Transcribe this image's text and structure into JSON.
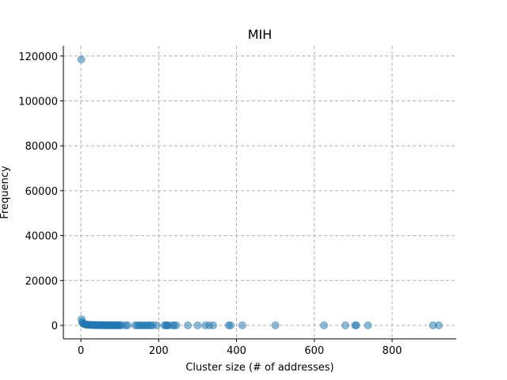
{
  "chart_data": {
    "type": "scatter",
    "title": "MIH",
    "xlabel": "Cluster size (# of addresses)",
    "ylabel": "Frequency",
    "xlim": [
      -45,
      965
    ],
    "ylim": [
      -6000,
      124500
    ],
    "xticks": [
      0,
      200,
      400,
      600,
      800
    ],
    "yticks": [
      0,
      20000,
      40000,
      60000,
      80000,
      100000,
      120000
    ],
    "grid": true,
    "marker_color": "#1f77b4",
    "points": {
      "x": [
        1,
        2,
        3,
        5,
        7,
        9,
        11,
        13,
        15,
        17,
        20,
        22,
        25,
        28,
        30,
        33,
        35,
        38,
        40,
        43,
        45,
        48,
        50,
        53,
        55,
        58,
        60,
        63,
        65,
        68,
        70,
        73,
        75,
        78,
        80,
        83,
        85,
        88,
        90,
        93,
        95,
        98,
        100,
        105,
        115,
        120,
        140,
        145,
        150,
        155,
        160,
        165,
        170,
        175,
        180,
        185,
        195,
        215,
        218,
        222,
        225,
        235,
        240,
        245,
        275,
        300,
        320,
        330,
        340,
        380,
        385,
        415,
        500,
        625,
        680,
        705,
        708,
        738,
        905,
        920
      ],
      "y": [
        118500,
        2700,
        1500,
        900,
        700,
        550,
        450,
        380,
        320,
        280,
        240,
        210,
        190,
        170,
        150,
        140,
        130,
        120,
        110,
        100,
        95,
        90,
        85,
        80,
        75,
        70,
        65,
        60,
        55,
        52,
        50,
        48,
        45,
        42,
        40,
        38,
        35,
        33,
        30,
        28,
        26,
        24,
        22,
        20,
        18,
        16,
        14,
        12,
        11,
        10,
        9,
        8,
        8,
        7,
        7,
        6,
        6,
        5,
        5,
        5,
        4,
        4,
        4,
        3,
        3,
        3,
        2,
        2,
        2,
        2,
        2,
        1,
        1,
        1,
        1,
        1,
        1,
        1,
        1,
        1
      ]
    }
  }
}
